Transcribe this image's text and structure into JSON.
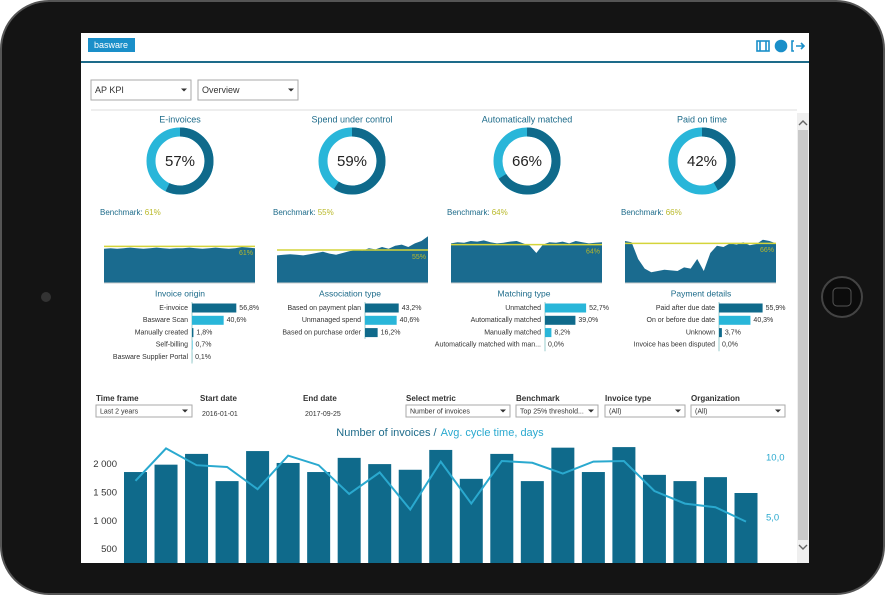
{
  "header": {
    "logo": "basware"
  },
  "selectors": [
    "AP KPI",
    "Overview"
  ],
  "benchmark_caption": "Benchmark:",
  "kpis": [
    {
      "title": "E-invoices",
      "value": 57,
      "value_label": "57%",
      "benchmark": 61,
      "benchmark_label": "61%",
      "trend": {
        "ylim": [
          0,
          80
        ],
        "values": [
          57,
          58,
          57,
          58,
          59,
          58,
          57,
          58,
          59,
          58,
          57,
          58,
          58,
          59,
          58,
          57,
          58,
          59,
          58,
          57,
          58,
          60,
          59,
          58
        ]
      }
    },
    {
      "title": "Spend under control",
      "value": 59,
      "value_label": "59%",
      "benchmark": 55,
      "benchmark_label": "55%",
      "trend": {
        "ylim": [
          0,
          80
        ],
        "values": [
          46,
          47,
          48,
          47,
          46,
          48,
          50,
          52,
          49,
          47,
          50,
          53,
          55,
          54,
          58,
          56,
          60,
          57,
          62,
          64,
          60,
          66,
          70,
          78
        ]
      }
    },
    {
      "title": "Automatically matched",
      "value": 66,
      "value_label": "66%",
      "benchmark": 64,
      "benchmark_label": "64%",
      "trend": {
        "ylim": [
          0,
          80
        ],
        "values": [
          66,
          68,
          67,
          70,
          69,
          71,
          68,
          66,
          67,
          69,
          70,
          66,
          62,
          50,
          64,
          68,
          67,
          69,
          66,
          70,
          68,
          66,
          67,
          68
        ]
      }
    },
    {
      "title": "Paid on time",
      "value": 42,
      "value_label": "42%",
      "benchmark": 66,
      "benchmark_label": "66%",
      "trend": {
        "ylim": [
          0,
          80
        ],
        "values": [
          70,
          68,
          40,
          24,
          18,
          20,
          22,
          21,
          20,
          26,
          24,
          40,
          20,
          50,
          62,
          60,
          66,
          64,
          68,
          63,
          65,
          72,
          70,
          66
        ]
      }
    }
  ],
  "breakdowns": [
    {
      "title": "Invoice origin",
      "rows": [
        {
          "label": "E-invoice",
          "value": 56.8,
          "value_label": "56,8%",
          "color": "#0f6a8b"
        },
        {
          "label": "Basware Scan",
          "value": 40.6,
          "value_label": "40,6%",
          "color": "#29b6d9"
        },
        {
          "label": "Manually created",
          "value": 1.8,
          "value_label": "1,8%",
          "color": "#0f6a8b"
        },
        {
          "label": "Self-billing",
          "value": 0.7,
          "value_label": "0,7%",
          "color": "#29b6d9"
        },
        {
          "label": "Basware Supplier Portal",
          "value": 0.1,
          "value_label": "0,1%",
          "color": "#0f6a8b"
        }
      ]
    },
    {
      "title": "Association type",
      "rows": [
        {
          "label": "Based on payment plan",
          "value": 43.2,
          "value_label": "43,2%",
          "color": "#0f6a8b"
        },
        {
          "label": "Unmanaged spend",
          "value": 40.6,
          "value_label": "40,6%",
          "color": "#29b6d9"
        },
        {
          "label": "Based on purchase order",
          "value": 16.2,
          "value_label": "16,2%",
          "color": "#0f6a8b"
        }
      ]
    },
    {
      "title": "Matching type",
      "rows": [
        {
          "label": "Unmatched",
          "value": 52.7,
          "value_label": "52,7%",
          "color": "#29b6d9"
        },
        {
          "label": "Automatically matched",
          "value": 39,
          "value_label": "39,0%",
          "color": "#0f6a8b"
        },
        {
          "label": "Manually matched",
          "value": 8.2,
          "value_label": "8,2%",
          "color": "#29b6d9"
        },
        {
          "label": "Automatically matched with man...",
          "value": 0,
          "value_label": "0,0%",
          "color": "#0f6a8b"
        }
      ]
    },
    {
      "title": "Payment details",
      "rows": [
        {
          "label": "Paid after due date",
          "value": 55.9,
          "value_label": "55,9%",
          "color": "#0f6a8b"
        },
        {
          "label": "On or before due date",
          "value": 40.3,
          "value_label": "40,3%",
          "color": "#29b6d9"
        },
        {
          "label": "Unknown",
          "value": 3.7,
          "value_label": "3,7%",
          "color": "#0f6a8b"
        },
        {
          "label": "Invoice has been disputed",
          "value": 0,
          "value_label": "0,0%",
          "color": "#29b6d9"
        }
      ]
    }
  ],
  "filters": [
    {
      "label": "Time frame",
      "value": "Last 2 years",
      "dropdown": true
    },
    {
      "label": "Start date",
      "value": "2016-01-01",
      "dropdown": false
    },
    {
      "label": "End date",
      "value": "2017-09-25",
      "dropdown": false
    },
    {
      "label": "Select metric",
      "value": "Number of invoices",
      "dropdown": true
    },
    {
      "label": "Benchmark",
      "value": "Top 25% threshold...",
      "dropdown": true
    },
    {
      "label": "Invoice type",
      "value": "(All)",
      "dropdown": true
    },
    {
      "label": "Organization",
      "value": "(All)",
      "dropdown": true
    }
  ],
  "main_chart": {
    "type": "bar",
    "title": "Number of invoices /",
    "subtitle": "Avg. cycle time, days",
    "ylim": [
      0,
      2400
    ],
    "yticks": [
      500,
      {
        "value": 1000,
        "label": "1 000"
      },
      {
        "value": 1500,
        "label": "1 500"
      },
      {
        "value": 2000,
        "label": "2 000"
      }
    ],
    "y2lim": [
      0,
      11.1
    ],
    "y2ticks": [
      {
        "value": 5,
        "label": "5,0"
      },
      {
        "value": 10,
        "label": "10,0"
      }
    ],
    "series": [
      {
        "type": "bar",
        "color": "#0f6a8b",
        "values": [
          1870,
          2000,
          2190,
          1710,
          2240,
          2030,
          1870,
          2120,
          2010,
          1910,
          2260,
          1750,
          2190,
          1710,
          2300,
          1870,
          2310,
          1820,
          1710,
          1780,
          1500
        ]
      },
      {
        "type": "line",
        "axis": "y2",
        "color": "#2aa9cf",
        "values": [
          8.1,
          10.8,
          9.4,
          9.25,
          7.4,
          10.2,
          9.4,
          7.0,
          8.8,
          5.7,
          9.7,
          6.2,
          9.75,
          9.6,
          8.7,
          9.7,
          9.75,
          7.25,
          6.2,
          5.9,
          4.7
        ]
      }
    ]
  }
}
